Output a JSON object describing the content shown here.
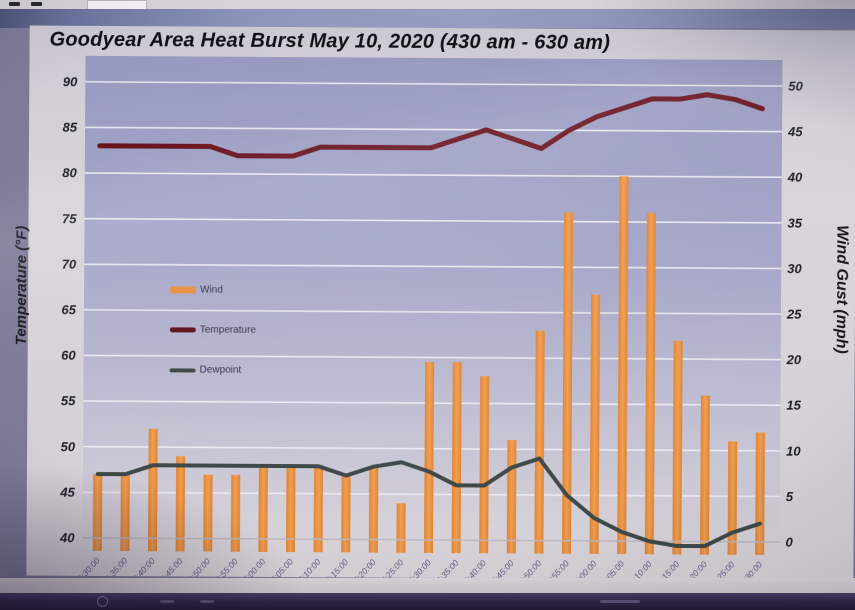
{
  "chart_data": {
    "type": "combo",
    "title": "Goodyear Area Heat Burst May 10, 2020 (430 am - 630 am)",
    "categories": [
      "4:30:00",
      "4:35:00",
      "4:40:00",
      "4:45:00",
      "4:50:00",
      "4:55:00",
      "5:00:00",
      "5:05:00",
      "5:10:00",
      "5:15:00",
      "5:20:00",
      "5:25:00",
      "5:30:00",
      "5:35:00",
      "5:40:00",
      "5:45:00",
      "5:50:00",
      "5:55:00",
      "6:00:00",
      "6:05:00",
      "6:10:00",
      "6:15:00",
      "6:20:00",
      "6:25:00",
      "6:30:00"
    ],
    "series": [
      {
        "name": "Wind",
        "type": "bar",
        "axis": "right",
        "values": [
          7,
          7,
          12,
          9,
          7,
          7,
          8,
          8,
          8,
          7,
          8,
          4,
          19.5,
          19.5,
          18,
          11,
          23,
          36,
          27,
          40,
          36,
          22,
          16,
          11,
          12
        ]
      },
      {
        "name": "Temperature",
        "type": "line",
        "axis": "left",
        "values": [
          83,
          83,
          83,
          83,
          83,
          82,
          82,
          82,
          83,
          83,
          83,
          83,
          83,
          84,
          85,
          84,
          83,
          85,
          86.5,
          87.5,
          88.5,
          88.5,
          89,
          88.5,
          87.5
        ]
      },
      {
        "name": "Dewpoint",
        "type": "line",
        "axis": "left",
        "values": [
          47,
          47,
          48,
          48,
          48,
          48,
          48,
          48,
          48,
          47,
          48,
          48.5,
          47.5,
          46,
          46,
          48,
          49,
          45,
          42.5,
          41,
          40,
          39.5,
          39.5,
          41,
          42
        ]
      }
    ],
    "left_axis": {
      "label": "Temperature (°F)",
      "min": 40,
      "max": 90,
      "step": 5
    },
    "right_axis": {
      "label": "Wind Gust (mph)",
      "min": 0,
      "max": 50,
      "step": 5
    },
    "legend": {
      "position": "left-middle",
      "entries": [
        "Wind",
        "Temperature",
        "Dewpoint"
      ]
    },
    "grid": true,
    "colors": {
      "bar": "#ec9445",
      "bar_edge": "#e08432",
      "bar_highlight": "#f09e52",
      "temperature_line": "#671019",
      "dewpoint_line": "#3e4848",
      "plot_top": "#9799bf",
      "plot_mid": "#a7a8c9",
      "plot_bottom": "#d8d4da",
      "gridline": "#edebf3",
      "axis_line": "#bdb7c2",
      "tick_text": "#1c1c26",
      "x_tick_text": "#5e5e84"
    }
  }
}
